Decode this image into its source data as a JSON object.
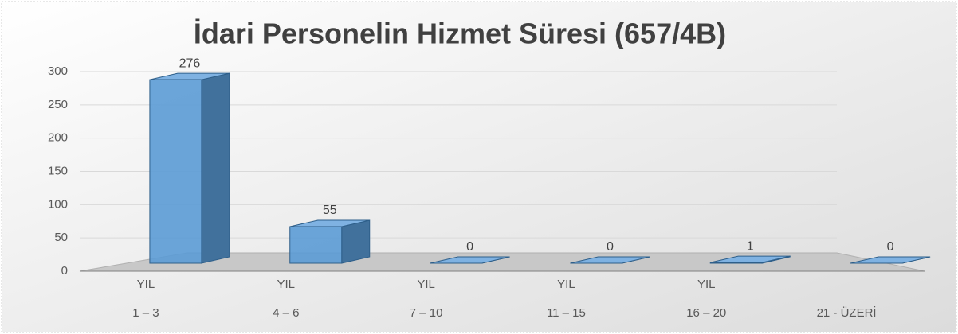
{
  "chart_data": {
    "type": "bar3d",
    "title": "İdari Personelin Hizmet Süresi (657/4B)",
    "categories": [
      [
        "YIL",
        "1 – 3"
      ],
      [
        "YIL",
        "4 – 6"
      ],
      [
        "YIL",
        "7 – 10"
      ],
      [
        "YIL",
        "11 – 15"
      ],
      [
        "YIL",
        "16 – 20"
      ],
      [
        "21 - ÜZERİ"
      ]
    ],
    "values": [
      276,
      55,
      0,
      0,
      1,
      0
    ],
    "color": "#5b9bd5",
    "ylim": [
      0,
      300
    ],
    "yticks": [
      0,
      50,
      100,
      150,
      200,
      250,
      300
    ],
    "grid": true
  }
}
